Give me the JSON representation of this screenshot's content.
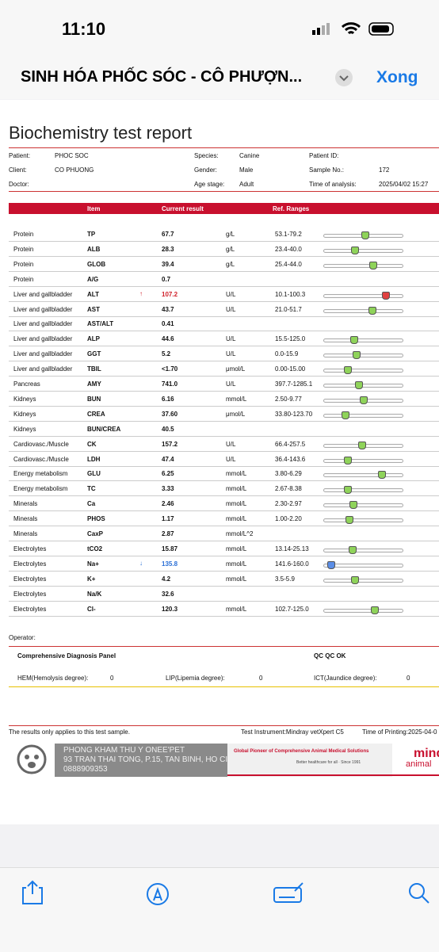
{
  "status_bar": {
    "time": "11:10"
  },
  "nav": {
    "title": "SINH HÓA PHỐC SÓC - CÔ PHƯỢN...",
    "done": "Xong"
  },
  "report": {
    "title": "Biochemistry test report",
    "info": [
      [
        {
          "label": "Patient:",
          "value": "PHOC SOC"
        },
        {
          "label": "Species:",
          "value": "Canine"
        },
        {
          "label": "Patient ID:"
        }
      ],
      [
        {
          "label": "Client:",
          "value": "CO PHUONG"
        },
        {
          "label": "Gender:",
          "value": "Male"
        },
        {
          "label": "Sample No.:",
          "value": "172"
        }
      ],
      [
        {
          "label": "Doctor:"
        },
        {
          "label": "Age stage:",
          "value": "Adult"
        },
        {
          "label": "Time of analysis:",
          "value": "2025/04/02 15:27"
        }
      ]
    ],
    "table_header": {
      "item": "Item",
      "result": "Current result",
      "ranges": "Ref. Ranges"
    },
    "rows": [
      {
        "group": "Protein",
        "item": "TP",
        "result": "67.7",
        "unit": "g/L",
        "range": "53.1-79.2"
      },
      {
        "group": "Protein",
        "item": "ALB",
        "result": "28.3",
        "unit": "g/L",
        "range": "23.4-40.0"
      },
      {
        "group": "Protein",
        "item": "GLOB",
        "result": "39.4",
        "unit": "g/L",
        "range": "25.4-44.0"
      },
      {
        "group": "Protein",
        "item": "A/G",
        "result": "0.7"
      },
      {
        "group": "Liver and gallbladder",
        "item": "ALT",
        "flag": "↑",
        "result": "107.2",
        "unit": "U/L",
        "range": "10.1-100.3"
      },
      {
        "group": "Liver and gallbladder",
        "item": "AST",
        "result": "43.7",
        "unit": "U/L",
        "range": "21.0-51.7"
      },
      {
        "group": "Liver and gallbladder",
        "item": "AST/ALT",
        "result": "0.41"
      },
      {
        "group": "Liver and gallbladder",
        "item": "ALP",
        "result": "44.6",
        "unit": "U/L",
        "range": "15.5-125.0"
      },
      {
        "group": "Liver and gallbladder",
        "item": "GGT",
        "result": "5.2",
        "unit": "U/L",
        "range": "0.0-15.9"
      },
      {
        "group": "Liver and gallbladder",
        "item": "TBIL",
        "result": "<1.70",
        "unit": "μmol/L",
        "range": "0.00-15.00"
      },
      {
        "group": "Pancreas",
        "item": "AMY",
        "result": "741.0",
        "unit": "U/L",
        "range": "397.7-1285.1"
      },
      {
        "group": "Kidneys",
        "item": "BUN",
        "result": "6.16",
        "unit": "mmol/L",
        "range": "2.50-9.77"
      },
      {
        "group": "Kidneys",
        "item": "CREA",
        "result": "37.60",
        "unit": "μmol/L",
        "range": "33.80-123.70"
      },
      {
        "group": "Kidneys",
        "item": "BUN/CREA",
        "result": "40.5"
      },
      {
        "group": "Cardiovasc./Muscle",
        "item": "CK",
        "result": "157.2",
        "unit": "U/L",
        "range": "66.4-257.5"
      },
      {
        "group": "Cardiovasc./Muscle",
        "item": "LDH",
        "result": "47.4",
        "unit": "U/L",
        "range": "36.4-143.6"
      },
      {
        "group": "Energy metabolism",
        "item": "GLU",
        "result": "6.25",
        "unit": "mmol/L",
        "range": "3.80-6.29"
      },
      {
        "group": "Energy metabolism",
        "item": "TC",
        "result": "3.33",
        "unit": "mmol/L",
        "range": "2.67-8.38"
      },
      {
        "group": "Minerals",
        "item": "Ca",
        "result": "2.46",
        "unit": "mmol/L",
        "range": "2.30-2.97"
      },
      {
        "group": "Minerals",
        "item": "PHOS",
        "result": "1.17",
        "unit": "mmol/L",
        "range": "1.00-2.20"
      },
      {
        "group": "Minerals",
        "item": "CaxP",
        "result": "2.87",
        "unit": "mmol/L^2"
      },
      {
        "group": "Electrolytes",
        "item": "tCO2",
        "result": "15.87",
        "unit": "mmol/L",
        "range": "13.14-25.13"
      },
      {
        "group": "Electrolytes",
        "item": "Na+",
        "flag": "↓",
        "result": "135.8",
        "unit": "mmol/L",
        "range": "141.6-160.0"
      },
      {
        "group": "Electrolytes",
        "item": "K+",
        "result": "4.2",
        "unit": "mmol/L",
        "range": "3.5-5.9"
      },
      {
        "group": "Electrolytes",
        "item": "Na/K",
        "result": "32.6"
      },
      {
        "group": "Electrolytes",
        "item": "Cl-",
        "result": "120.3",
        "unit": "mmol/L",
        "range": "102.7-125.0"
      }
    ],
    "operator": "Operator:",
    "panel": {
      "title": "Comprehensive Diagnosis Panel",
      "qc": "QC QC OK",
      "indices": [
        {
          "label": "HEM(Hemolysis degree):",
          "value": "0"
        },
        {
          "label": "LIP(Lipemia degree):",
          "value": "0"
        },
        {
          "label": "ICT(Jaundice degree):",
          "value": "0"
        }
      ]
    },
    "footer": {
      "note": "The results only applies to this test sample.",
      "instrument": "Test Instrument:Mindray vetXpert C5",
      "printing": "Time of Printing:2025-04-0"
    },
    "banner": {
      "clinic": "PHONG KHAM THU Y ONEE'PET",
      "address": "93 TRAN THAI TONG, P.15, TAN BINH, HO CI",
      "phone": "0888909353",
      "slogan": "Global Pioneer of Comprehensive Animal Medical Solutions",
      "tagline": "Better healthcare for all  ·  Since 1991",
      "brand": "mind",
      "brand_sub": "animal"
    }
  }
}
